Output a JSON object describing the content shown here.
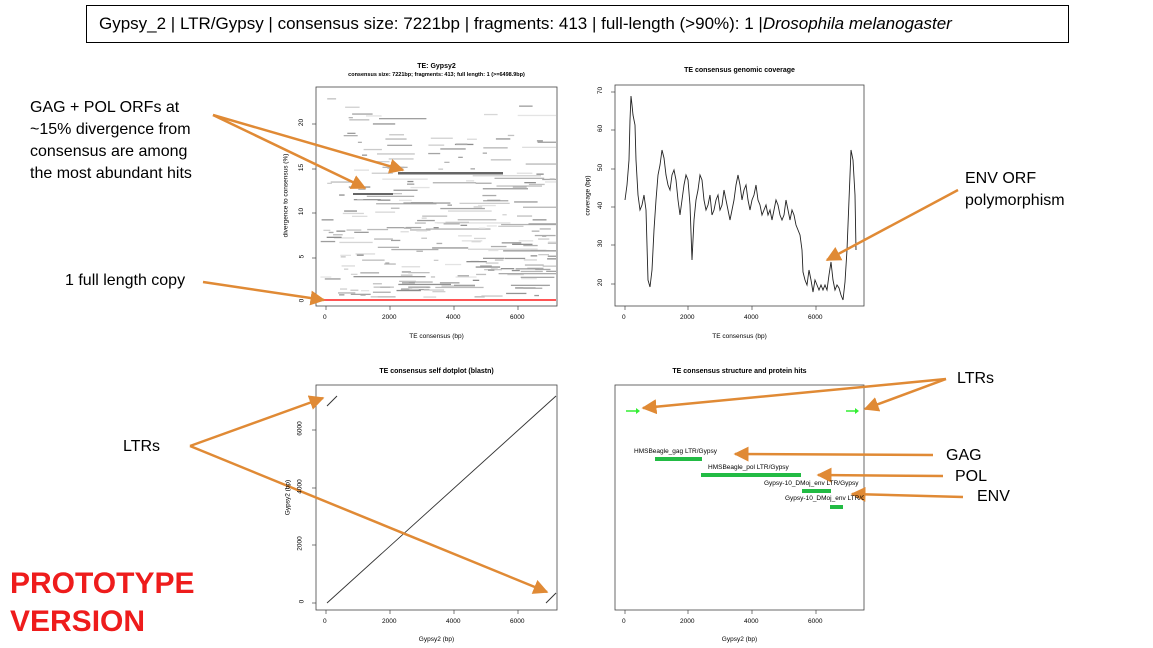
{
  "header": {
    "prefix": "Gypsy_2 | LTR/Gypsy | consensus size: 7221bp | fragments: 413 | full-length (>90%): 1 | ",
    "species": "Drosophila melanogaster"
  },
  "plot1": {
    "title": "TE: Gypsy2",
    "subtitle": "consensus size: 7221bp; fragments: 413; full length: 1 (>=6498.9bp)",
    "xlabel": "TE consensus (bp)",
    "ylabel": "divergence to consensus (%)",
    "xticks": [
      "0",
      "2000",
      "4000",
      "6000"
    ],
    "yticks": [
      "0",
      "5",
      "10",
      "15",
      "20"
    ]
  },
  "plot2": {
    "title": "TE consensus genomic coverage",
    "xlabel": "TE consensus (bp)",
    "ylabel": "coverage (bp)",
    "xticks": [
      "0",
      "2000",
      "4000",
      "6000"
    ],
    "yticks": [
      "20",
      "30",
      "40",
      "50",
      "60",
      "70"
    ]
  },
  "plot3": {
    "title": "TE consensus self dotplot (blastn)",
    "xlabel": "Gypsy2 (bp)",
    "ylabel": "Gypsy2 (bp)",
    "xticks": [
      "0",
      "2000",
      "4000",
      "6000"
    ],
    "yticks": [
      "0",
      "2000",
      "4000",
      "6000"
    ]
  },
  "plot4": {
    "title": "TE consensus structure and protein hits",
    "xlabel": "Gypsy2 (bp)",
    "xticks": [
      "0",
      "2000",
      "4000",
      "6000"
    ],
    "hits": [
      {
        "label": "HMSBeagle_gag LTR/Gypsy"
      },
      {
        "label": "HMSBeagle_pol LTR/Gypsy"
      },
      {
        "label": "Gypsy-10_DMoj_env LTR/Gypsy"
      },
      {
        "label": "Gypsy-10_DMoj_env LTR/Gypsy"
      }
    ]
  },
  "annotations": {
    "gag_pol_line1": "GAG + POL ORFs at",
    "gag_pol_line2": "~15% divergence from",
    "gag_pol_line3": "consensus are among",
    "gag_pol_line4": "the most abundant hits",
    "full_length": "1 full length copy",
    "env_line1": "ENV ORF",
    "env_line2": "polymorphism",
    "ltrs_left": "LTRs",
    "ltrs_right": "LTRs",
    "gag": "GAG",
    "pol": "POL",
    "env": "ENV"
  },
  "prototype": {
    "line1": "PROTOTYPE",
    "line2": "VERSION"
  },
  "colors": {
    "arrow": "#e08a35",
    "prototype": "#ee1c1c",
    "ltr_green": "#33ee33",
    "hit_green": "#22bb44",
    "full_length_red": "#ff5555"
  }
}
